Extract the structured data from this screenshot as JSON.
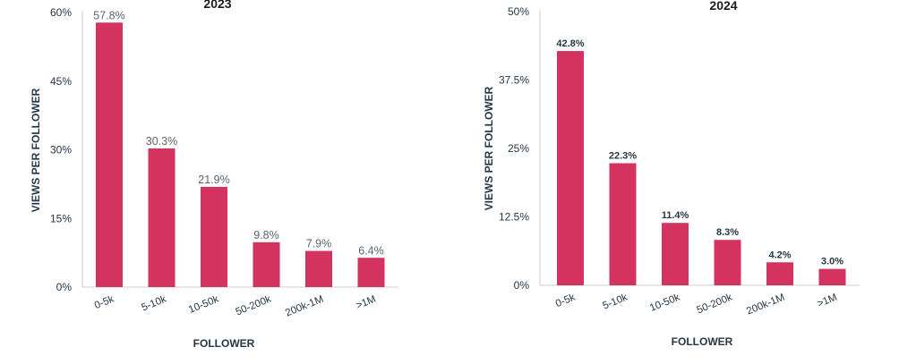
{
  "chart_data": [
    {
      "type": "bar",
      "title": "2023",
      "xlabel": "FOLLOWER",
      "ylabel": "VIEWS PER FOLLOWER",
      "categories": [
        "0-5k",
        "5-10k",
        "10-50k",
        "50-200k",
        "200k-1M",
        ">1M"
      ],
      "values": [
        57.8,
        30.3,
        21.9,
        9.8,
        7.9,
        6.4
      ],
      "data_labels": [
        "57.8%",
        "30.3%",
        "21.9%",
        "9.8%",
        "7.9%",
        "6.4%"
      ],
      "yticks": [
        "0%",
        "15%",
        "30%",
        "45%",
        "60%"
      ],
      "ytick_values": [
        0,
        15,
        30,
        45,
        60
      ],
      "ylim": [
        0,
        60
      ],
      "grid": false,
      "bar_color": "#d4325f"
    },
    {
      "type": "bar",
      "title": "2024",
      "xlabel": "FOLLOWER",
      "ylabel": "VIEWS PER FOLLOWER",
      "categories": [
        "0-5k",
        "5-10k",
        "10-50k",
        "50-200k",
        "200k-1M",
        ">1M"
      ],
      "values": [
        42.8,
        22.3,
        11.4,
        8.3,
        4.2,
        3.0
      ],
      "data_labels": [
        "42.8%",
        "22.3%",
        "11.4%",
        "8.3%",
        "4.2%",
        "3.0%"
      ],
      "yticks": [
        "0%",
        "12.5%",
        "25%",
        "37.5%",
        "50%"
      ],
      "ytick_values": [
        0,
        12.5,
        25,
        37.5,
        50
      ],
      "ylim": [
        0,
        50
      ],
      "grid": false,
      "bar_color": "#d4325f"
    }
  ]
}
